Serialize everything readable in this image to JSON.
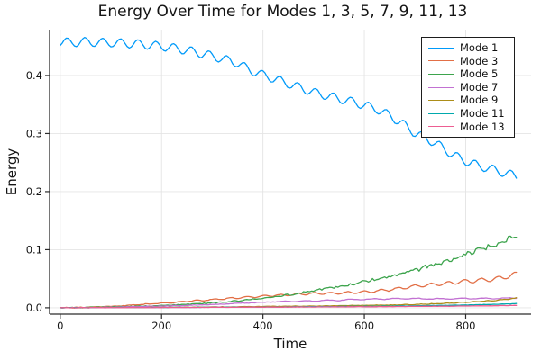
{
  "chart_data": {
    "type": "line",
    "title": "Energy Over Time for Modes 1, 3, 5, 7, 9, 11, 13",
    "xlabel": "Time",
    "ylabel": "Energy",
    "xlim": [
      -21,
      929
    ],
    "ylim": [
      -0.011,
      0.479
    ],
    "grid": true,
    "legend_position": "top-right",
    "xticks": {
      "values": [
        0,
        200,
        400,
        600,
        800
      ],
      "labels": [
        "0",
        "200",
        "400",
        "600",
        "800"
      ]
    },
    "yticks": {
      "values": [
        0.0,
        0.1,
        0.2,
        0.3,
        0.4
      ],
      "labels": [
        "0.0",
        "0.1",
        "0.2",
        "0.3",
        "0.4"
      ]
    },
    "t": [
      0,
      25,
      50,
      75,
      100,
      125,
      150,
      175,
      200,
      225,
      250,
      275,
      300,
      325,
      350,
      375,
      400,
      425,
      450,
      475,
      500,
      525,
      550,
      575,
      600,
      625,
      650,
      675,
      700,
      725,
      750,
      775,
      800,
      825,
      850,
      875,
      900
    ],
    "series": [
      {
        "name": "Mode 1",
        "color": "#009af9",
        "values": [
          0.4575,
          0.457,
          0.458,
          0.457,
          0.4565,
          0.4555,
          0.4545,
          0.4525,
          0.4505,
          0.447,
          0.4435,
          0.4385,
          0.4335,
          0.4275,
          0.4215,
          0.409,
          0.401,
          0.3935,
          0.386,
          0.3785,
          0.371,
          0.3655,
          0.36,
          0.355,
          0.349,
          0.342,
          0.331,
          0.317,
          0.301,
          0.2905,
          0.278,
          0.263,
          0.2525,
          0.2445,
          0.239,
          0.2325,
          0.2265
        ],
        "texture": {
          "osc_amp": 0.0075,
          "osc_period": 35,
          "osc_phase": -0.9,
          "noise": 0.0003
        }
      },
      {
        "name": "Mode 3",
        "color": "#e26f46",
        "values": [
          0,
          0.0005,
          0.001,
          0.0015,
          0.0025,
          0.0035,
          0.005,
          0.0065,
          0.008,
          0.0095,
          0.011,
          0.0125,
          0.014,
          0.0155,
          0.017,
          0.0185,
          0.02,
          0.0215,
          0.0225,
          0.0235,
          0.0245,
          0.025,
          0.0255,
          0.026,
          0.027,
          0.029,
          0.031,
          0.034,
          0.037,
          0.039,
          0.041,
          0.043,
          0.0455,
          0.047,
          0.049,
          0.052,
          0.058
        ],
        "texture": {
          "osc_rel": 0.07,
          "osc_period": 33,
          "osc_phase": 0.5,
          "noise": 0.0005
        }
      },
      {
        "name": "Mode 5",
        "color": "#3da44d",
        "values": [
          0,
          0.0003,
          0.0006,
          0.001,
          0.0015,
          0.002,
          0.0025,
          0.003,
          0.004,
          0.005,
          0.006,
          0.007,
          0.0085,
          0.01,
          0.012,
          0.014,
          0.016,
          0.019,
          0.022,
          0.026,
          0.03,
          0.033,
          0.036,
          0.04,
          0.045,
          0.049,
          0.054,
          0.059,
          0.065,
          0.071,
          0.078,
          0.084,
          0.092,
          0.099,
          0.106,
          0.113,
          0.126
        ],
        "texture": {
          "osc_rel": 0.02,
          "osc_period": 21,
          "osc_phase": 0,
          "noise": 0.0006,
          "noise_rel": 0.03
        }
      },
      {
        "name": "Mode 7",
        "color": "#c271d2",
        "values": [
          0,
          0,
          0.0002,
          0.0005,
          0.001,
          0.0015,
          0.002,
          0.0025,
          0.003,
          0.0035,
          0.004,
          0.005,
          0.0055,
          0.0065,
          0.0075,
          0.0085,
          0.0095,
          0.0105,
          0.011,
          0.0115,
          0.012,
          0.0125,
          0.013,
          0.014,
          0.0145,
          0.015,
          0.0152,
          0.0155,
          0.0158,
          0.0155,
          0.0152,
          0.0155,
          0.016,
          0.0158,
          0.016,
          0.0163,
          0.0168
        ],
        "texture": {
          "osc_rel": 0.05,
          "osc_period": 44,
          "osc_phase": 1.5,
          "noise": 0.0004
        }
      },
      {
        "name": "Mode 9",
        "color": "#ac8d18",
        "values": [
          0,
          0.0001,
          0.0001,
          0.0002,
          0.0003,
          0.0004,
          0.0005,
          0.0006,
          0.0008,
          0.0009,
          0.001,
          0.0012,
          0.0014,
          0.0016,
          0.0018,
          0.0019,
          0.0021,
          0.0023,
          0.0025,
          0.0027,
          0.0029,
          0.0031,
          0.0034,
          0.0037,
          0.004,
          0.0043,
          0.0047,
          0.0052,
          0.0058,
          0.0065,
          0.0073,
          0.0082,
          0.0095,
          0.0108,
          0.0122,
          0.014,
          0.0165
        ],
        "texture": {
          "osc_rel": 0.04,
          "osc_period": 27,
          "osc_phase": 0,
          "noise": 0.0004
        }
      },
      {
        "name": "Mode 11",
        "color": "#00a9ad",
        "values": [
          0,
          0.0001,
          0.0001,
          0.0002,
          0.0002,
          0.0003,
          0.0003,
          0.0004,
          0.0005,
          0.0006,
          0.0007,
          0.0008,
          0.0009,
          0.001,
          0.0011,
          0.0012,
          0.0013,
          0.0014,
          0.0015,
          0.0016,
          0.0018,
          0.0019,
          0.0021,
          0.0022,
          0.0024,
          0.0026,
          0.0028,
          0.0031,
          0.0034,
          0.0037,
          0.004,
          0.0043,
          0.0047,
          0.0052,
          0.0057,
          0.0063,
          0.007
        ],
        "texture": {
          "noise": 0.0003
        }
      },
      {
        "name": "Mode 13",
        "color": "#ed5d92",
        "values": [
          0,
          0,
          0.0001,
          0.0001,
          0.0002,
          0.0002,
          0.0003,
          0.0003,
          0.0004,
          0.0005,
          0.0005,
          0.0006,
          0.0007,
          0.0008,
          0.0009,
          0.001,
          0.0011,
          0.0011,
          0.0012,
          0.0013,
          0.0014,
          0.0015,
          0.0016,
          0.0017,
          0.0018,
          0.0019,
          0.002,
          0.0021,
          0.0023,
          0.0024,
          0.0026,
          0.0028,
          0.003,
          0.0032,
          0.0034,
          0.0037,
          0.004
        ],
        "texture": {
          "noise": 0.00025
        }
      }
    ],
    "style": {
      "grid_color": "#e4e4e4",
      "spine_color": "#2c2c2c",
      "tick_label_color": "#151515"
    }
  }
}
